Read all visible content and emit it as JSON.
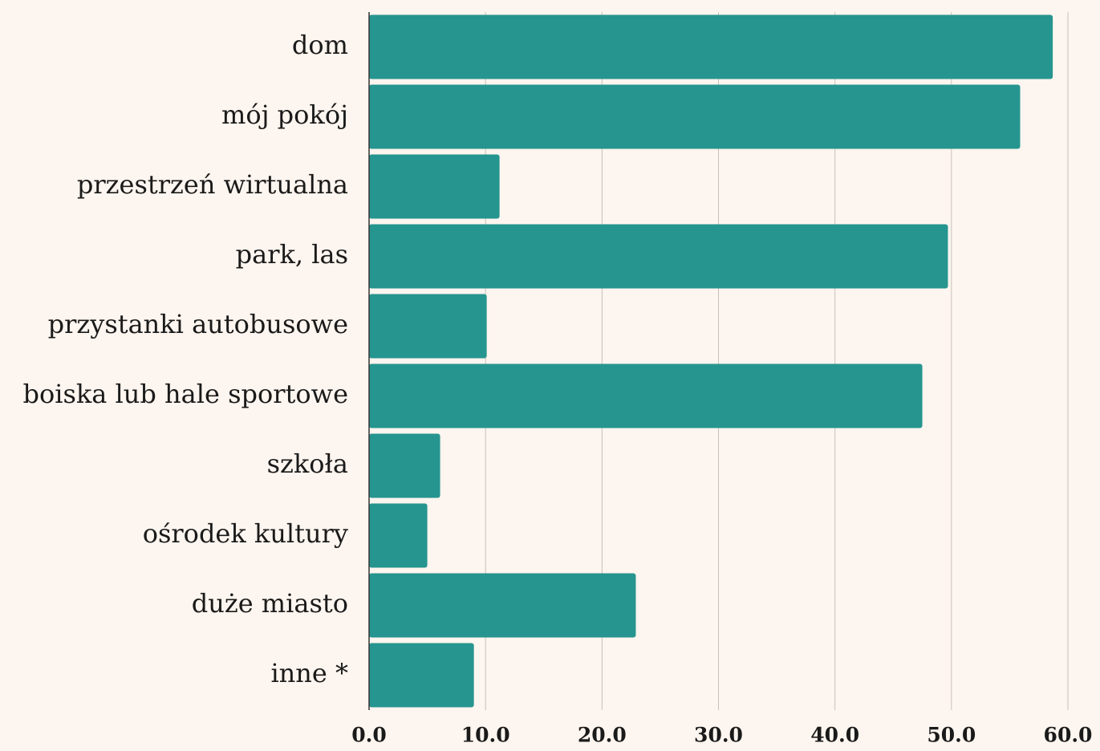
{
  "chart_data": {
    "type": "bar",
    "orientation": "horizontal",
    "categories": [
      "dom",
      "mój pokój",
      "przestrzeń wirtualna",
      "park, las",
      "przystanki autobusowe",
      "boiska lub hale sportowe",
      "szkoła",
      "ośrodek kultury",
      "duże miasto",
      "inne *"
    ],
    "values": [
      58.7,
      55.9,
      11.2,
      49.7,
      10.1,
      47.5,
      6.1,
      5.0,
      22.9,
      9.0
    ],
    "color": "#26958f",
    "xlim": [
      0,
      60
    ],
    "xticks": [
      {
        "value": 0,
        "label": "0.0"
      },
      {
        "value": 10,
        "label": "10.0"
      },
      {
        "value": 20,
        "label": "20.0"
      },
      {
        "value": 30,
        "label": "30.0"
      },
      {
        "value": 40,
        "label": "40.0"
      },
      {
        "value": 50,
        "label": "50.0"
      },
      {
        "value": 60,
        "label": "60.0"
      }
    ],
    "grid": true
  }
}
